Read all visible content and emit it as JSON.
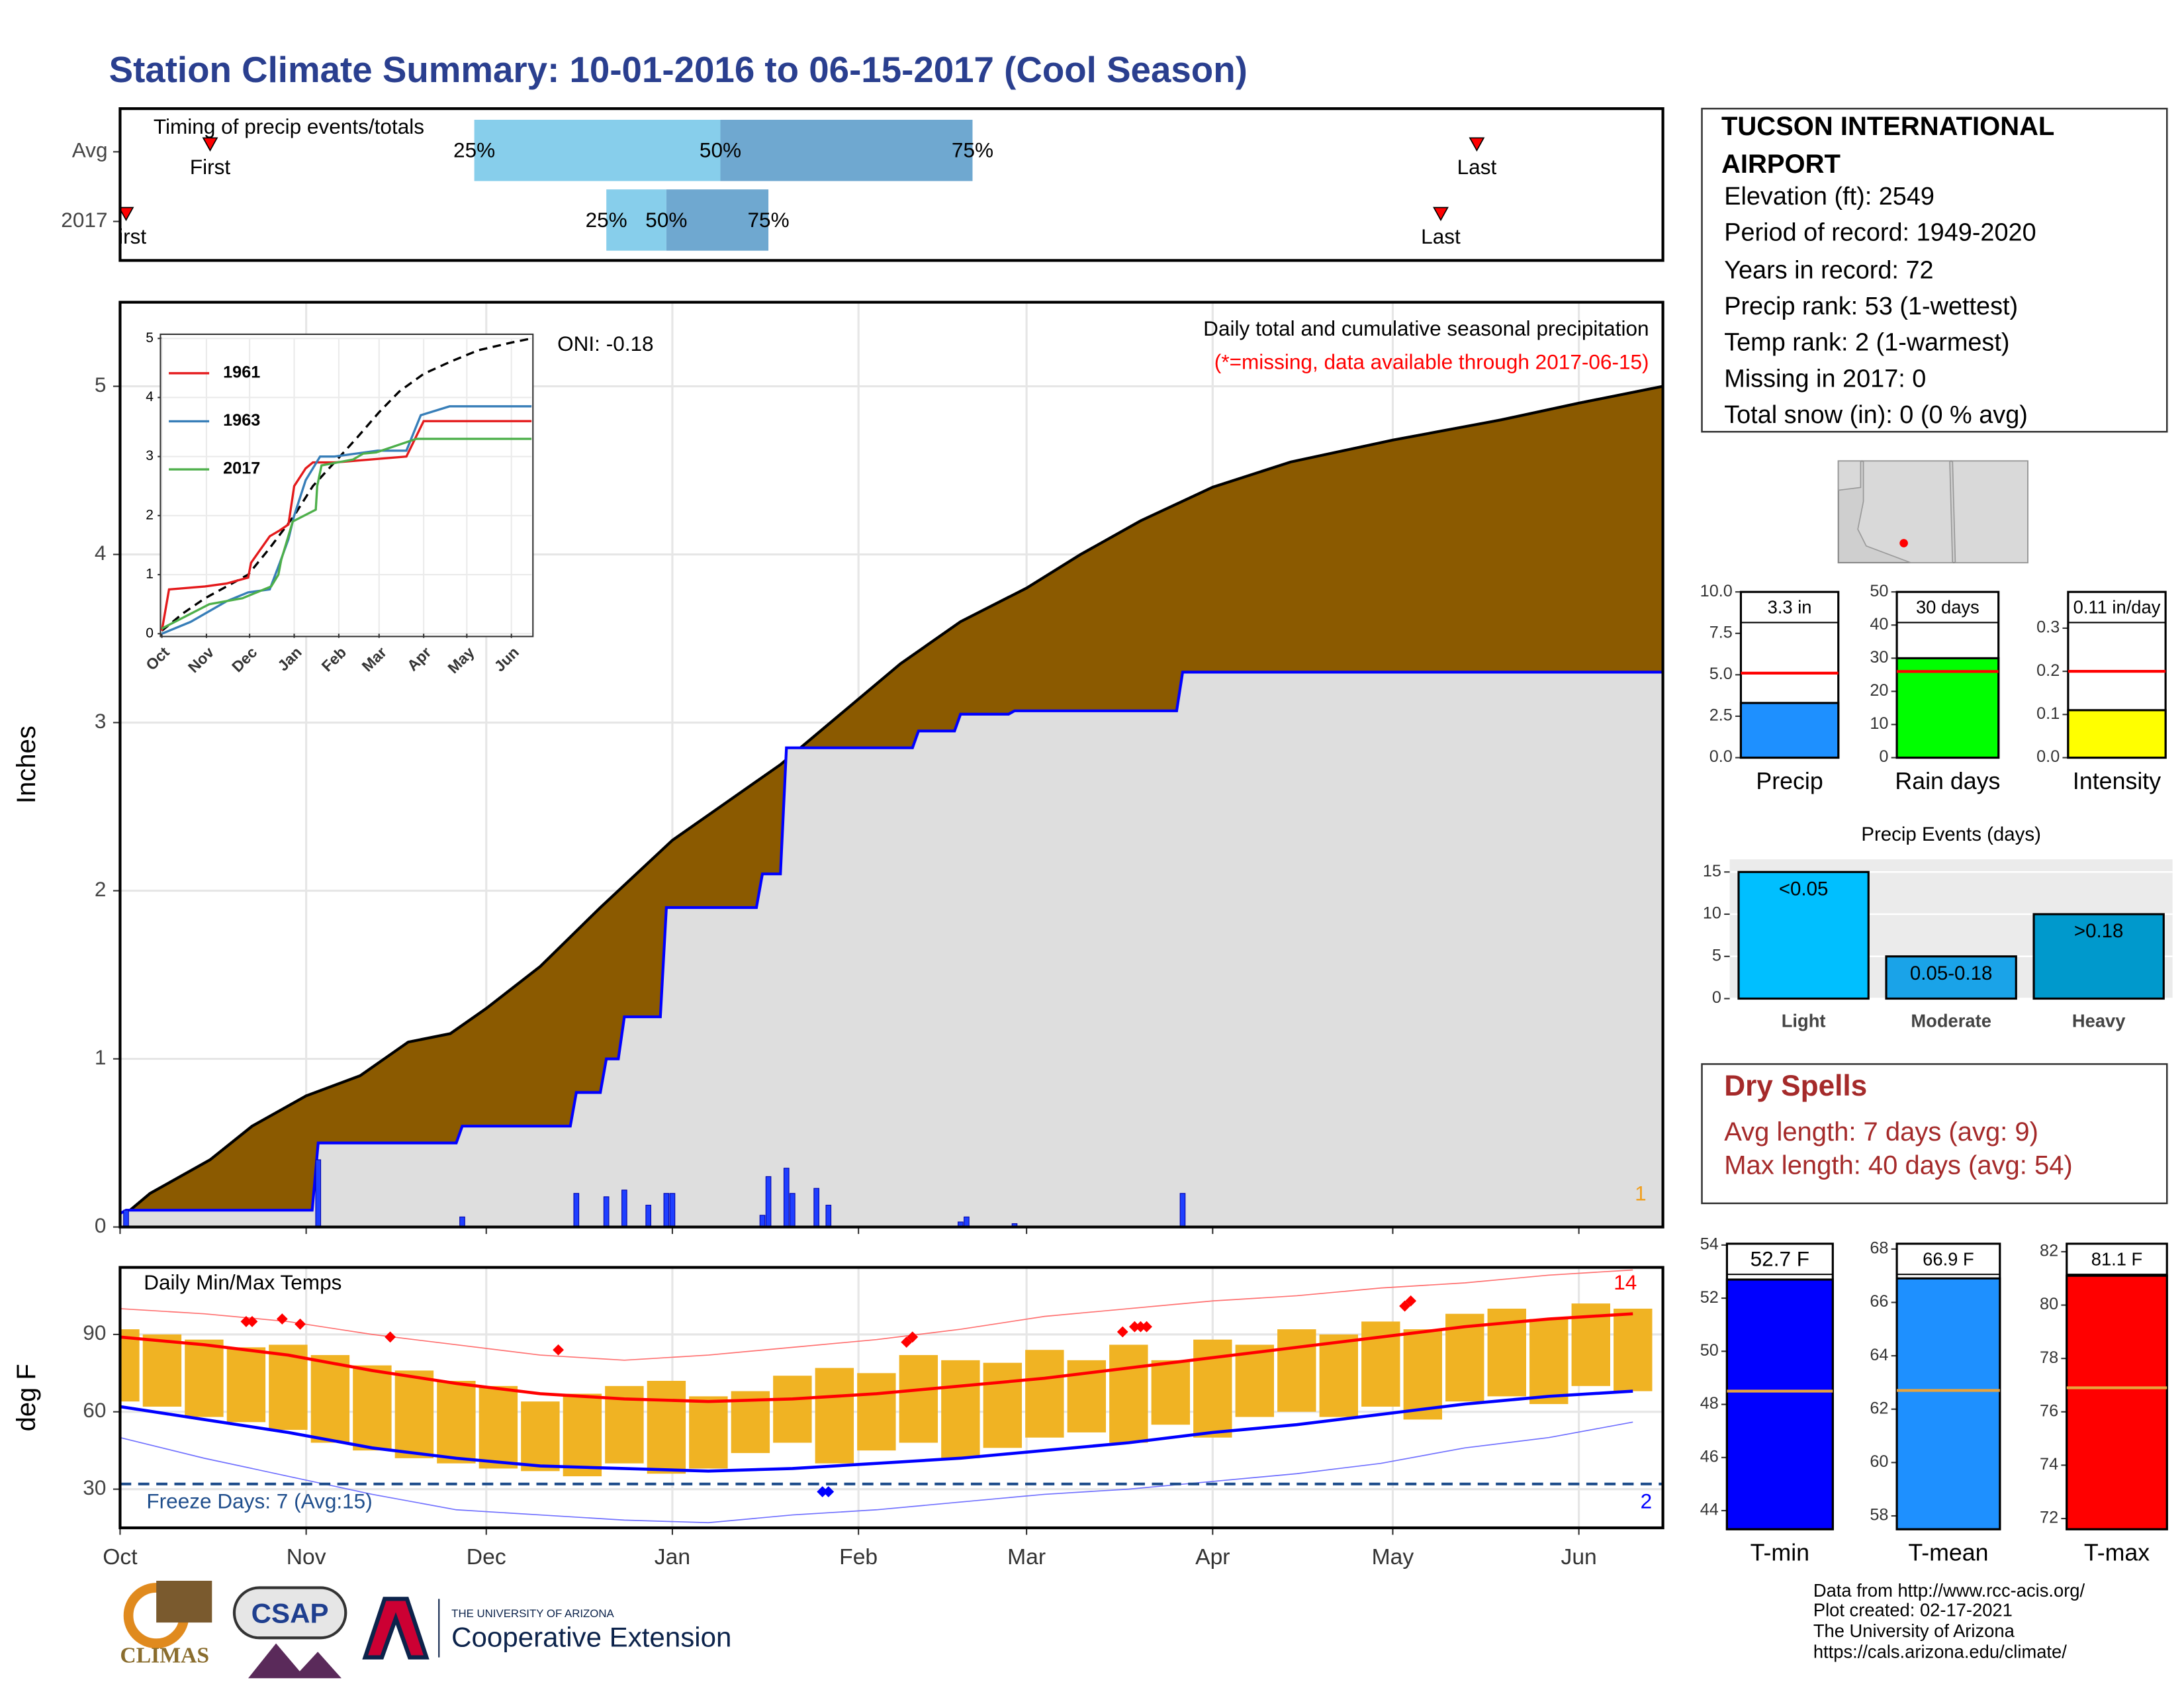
{
  "title": "Station Climate Summary: 10-01-2016 to 06-15-2017 (Cool Season)",
  "station": {
    "name": "TUCSON INTERNATIONAL AIRPORT",
    "details": [
      "Elevation (ft): 2549",
      "Period of record: 1949-2020",
      "Years in record: 72",
      "Precip rank: 53 (1-wettest)",
      "Temp rank: 2 (1-warmest)",
      "Missing in 2017: 0",
      "Total snow (in): 0 (0 % avg)"
    ]
  },
  "dry_spells": {
    "title": "Dry Spells",
    "lines": [
      "Avg length: 7 days (avg: 9)",
      "Max length: 40 days (avg: 54)"
    ]
  },
  "credits": [
    "Data from http://www.rcc-acis.org/",
    "Plot created: 02-17-2021",
    "The University of Arizona",
    "https://cals.arizona.edu/climate/"
  ],
  "logos": [
    "CLIMAS",
    "CSAP",
    "THE UNIVERSITY OF ARIZONA",
    "Cooperative Extension"
  ],
  "chart_data": [
    {
      "type": "timing",
      "title": "Timing of precip events/totals",
      "xlim": [
        0,
        257
      ],
      "series": [
        {
          "name": "Avg",
          "values": [
            15,
            59,
            100,
            142,
            226
          ]
        },
        {
          "name": "2017",
          "values": [
            1,
            81,
            91,
            108,
            220
          ]
        }
      ],
      "marker_labels": [
        "First",
        "25%",
        "50%",
        "75%",
        "Last"
      ],
      "colors": [
        "#87ceeb",
        "#6fa8d0"
      ],
      "marker_color": "#ff0000"
    },
    {
      "type": "cumulative_area",
      "title": "Daily total and cumulative seasonal precipitation",
      "subtitle": "(*=missing, data available through 2017-06-15)",
      "ylabel": "Inches",
      "annotations": [
        "ONI: -0.18",
        "1"
      ],
      "xlim": [
        0,
        257
      ],
      "ylim": [
        0,
        5.5
      ],
      "xticks": [
        0,
        31,
        61,
        92,
        123,
        151,
        182,
        212,
        243
      ],
      "yticks": [
        0,
        1,
        2,
        3,
        4,
        5
      ],
      "grid": true,
      "series": [
        {
          "x": [
            0,
            5,
            15,
            22,
            31,
            40,
            48,
            55,
            61,
            70,
            80,
            92,
            100,
            110,
            120,
            130,
            140,
            151,
            160,
            170,
            182,
            195,
            212,
            230,
            243,
            257
          ],
          "values": [
            0.05,
            0.2,
            0.4,
            0.6,
            0.78,
            0.9,
            1.1,
            1.15,
            1.3,
            1.55,
            1.9,
            2.3,
            2.5,
            2.75,
            3.05,
            3.35,
            3.6,
            3.8,
            4.0,
            4.2,
            4.4,
            4.55,
            4.68,
            4.8,
            4.9,
            5.0
          ],
          "color": "#000000",
          "fill": "#8b5a00"
        },
        {
          "x": [
            0,
            1,
            32,
            33,
            56,
            57,
            75,
            76,
            80,
            81,
            83,
            84,
            90,
            91,
            106,
            107,
            110,
            111,
            132,
            133,
            139,
            140,
            148,
            149,
            176,
            177,
            257
          ],
          "values": [
            0.08,
            0.1,
            0.1,
            0.5,
            0.5,
            0.6,
            0.6,
            0.8,
            0.8,
            1.0,
            1.0,
            1.25,
            1.25,
            1.9,
            1.9,
            2.1,
            2.1,
            2.85,
            2.85,
            2.95,
            2.95,
            3.05,
            3.05,
            3.07,
            3.07,
            3.3,
            3.3
          ],
          "color": "#0000ff",
          "fill": "#dedede"
        }
      ],
      "daily": {
        "x": [
          1,
          33,
          57,
          76,
          81,
          84,
          88,
          91,
          92,
          107,
          108,
          111,
          112,
          116,
          118,
          140,
          141,
          149,
          177
        ],
        "values": [
          0.1,
          0.4,
          0.06,
          0.2,
          0.18,
          0.22,
          0.13,
          0.2,
          0.2,
          0.07,
          0.3,
          0.35,
          0.2,
          0.23,
          0.13,
          0.03,
          0.06,
          0.02,
          0.2
        ],
        "color": "#1f3fff"
      }
    },
    {
      "type": "line",
      "xlim": [
        0,
        257
      ],
      "ylim": [
        0,
        5
      ],
      "yticks": [
        0,
        1,
        2,
        3,
        4,
        5
      ],
      "xticks": [
        {
          "value": 0,
          "label": "Oct"
        },
        {
          "value": 31,
          "label": "Nov"
        },
        {
          "value": 61,
          "label": "Dec"
        },
        {
          "value": 92,
          "label": "Jan"
        },
        {
          "value": 123,
          "label": "Feb"
        },
        {
          "value": 151,
          "label": "Mar"
        },
        {
          "value": 182,
          "label": "Apr"
        },
        {
          "value": 212,
          "label": "May"
        },
        {
          "value": 243,
          "label": "Jun"
        }
      ],
      "series": [
        {
          "x": [
            0,
            15,
            30,
            45,
            60,
            75,
            92,
            105,
            120,
            135,
            151,
            165,
            182,
            200,
            220,
            243,
            257
          ],
          "values": [
            0.05,
            0.35,
            0.6,
            0.8,
            1.0,
            1.45,
            2.0,
            2.5,
            2.9,
            3.3,
            3.75,
            4.1,
            4.4,
            4.6,
            4.8,
            4.93,
            5.0
          ],
          "color": "#000000",
          "dash": true
        },
        {
          "name": "1961",
          "x": [
            0,
            5,
            30,
            45,
            60,
            62,
            75,
            82,
            88,
            92,
            100,
            105,
            120,
            170,
            182,
            257
          ],
          "values": [
            0.05,
            0.75,
            0.8,
            0.85,
            0.95,
            1.2,
            1.65,
            1.75,
            1.85,
            2.5,
            2.8,
            2.9,
            2.9,
            3.0,
            3.6,
            3.6
          ],
          "color": "#e41a1c"
        },
        {
          "name": "1963",
          "x": [
            0,
            20,
            45,
            60,
            75,
            82,
            88,
            92,
            100,
            110,
            120,
            150,
            170,
            180,
            200,
            257
          ],
          "values": [
            0,
            0.2,
            0.55,
            0.7,
            0.75,
            1.2,
            1.6,
            2.0,
            2.6,
            3.0,
            3.0,
            3.1,
            3.1,
            3.7,
            3.85,
            3.85
          ],
          "color": "#377eb8"
        },
        {
          "name": "2017",
          "x": [
            0,
            1,
            33,
            56,
            76,
            81,
            83,
            91,
            107,
            108,
            111,
            133,
            140,
            149,
            177,
            257
          ],
          "values": [
            0.08,
            0.1,
            0.5,
            0.6,
            0.8,
            1.0,
            1.25,
            1.9,
            2.1,
            2.5,
            2.85,
            2.95,
            3.05,
            3.07,
            3.3,
            3.3
          ],
          "color": "#4daf4a"
        }
      ]
    },
    {
      "type": "temperature_range",
      "title": "Daily Min/Max Temps",
      "ylabel": "deg F",
      "xlim": [
        0,
        257
      ],
      "ylim": [
        15,
        116
      ],
      "xticks": [
        {
          "value": 0,
          "label": "Oct"
        },
        {
          "value": 31,
          "label": "Nov"
        },
        {
          "value": 61,
          "label": "Dec"
        },
        {
          "value": 92,
          "label": "Jan"
        },
        {
          "value": 123,
          "label": "Feb"
        },
        {
          "value": 151,
          "label": "Mar"
        },
        {
          "value": 182,
          "label": "Apr"
        },
        {
          "value": 212,
          "label": "May"
        },
        {
          "value": 243,
          "label": "Jun"
        }
      ],
      "yticks": [
        30,
        60,
        90
      ],
      "ranges": {
        "x": [
          0,
          7,
          14,
          21,
          28,
          35,
          42,
          49,
          56,
          63,
          70,
          77,
          84,
          91,
          98,
          105,
          112,
          119,
          126,
          133,
          140,
          147,
          154,
          161,
          168,
          175,
          182,
          189,
          196,
          203,
          210,
          217,
          224,
          231,
          238,
          245,
          252
        ],
        "low": [
          64,
          62,
          58,
          56,
          53,
          48,
          45,
          42,
          40,
          38,
          37,
          35,
          40,
          36,
          38,
          44,
          48,
          40,
          45,
          48,
          42,
          46,
          50,
          52,
          48,
          55,
          50,
          58,
          60,
          58,
          62,
          57,
          64,
          66,
          63,
          70,
          68
        ],
        "high": [
          92,
          90,
          88,
          85,
          86,
          82,
          78,
          76,
          72,
          70,
          64,
          67,
          70,
          72,
          66,
          68,
          74,
          77,
          75,
          82,
          80,
          79,
          84,
          80,
          86,
          80,
          88,
          86,
          92,
          90,
          95,
          92,
          98,
          100,
          96,
          102,
          100
        ],
        "color": "#f0b323"
      },
      "x": [
        0,
        14,
        28,
        42,
        56,
        70,
        84,
        98,
        112,
        126,
        140,
        154,
        168,
        182,
        196,
        210,
        224,
        238,
        252
      ],
      "series": [
        {
          "values": [
            100,
            98,
            95,
            90,
            86,
            82,
            80,
            82,
            85,
            88,
            92,
            97,
            100,
            103,
            105,
            108,
            110,
            113,
            115
          ],
          "color": "#ff7070",
          "width": 0.8
        },
        {
          "values": [
            50,
            42,
            35,
            28,
            22,
            20,
            18,
            17,
            20,
            22,
            25,
            28,
            30,
            33,
            36,
            40,
            46,
            50,
            56
          ],
          "color": "#7070ff",
          "width": 0.8
        },
        {
          "values": [
            89,
            86,
            82,
            76,
            71,
            67,
            65,
            64,
            65,
            67,
            70,
            73,
            77,
            81,
            85,
            89,
            93,
            96,
            98
          ],
          "color": "#ff0000",
          "width": 2.2
        },
        {
          "values": [
            62,
            57,
            52,
            46,
            42,
            39,
            38,
            37,
            38,
            40,
            42,
            45,
            48,
            52,
            55,
            59,
            63,
            66,
            68
          ],
          "color": "#0000ff",
          "width": 2.2
        }
      ],
      "record_days": {
        "x": [
          21,
          22,
          27,
          30,
          45,
          73,
          131,
          132,
          167,
          169,
          170,
          171,
          214,
          215
        ],
        "values": [
          95,
          95,
          96,
          94,
          89,
          84,
          87,
          89,
          91,
          93,
          93,
          93,
          101,
          103
        ],
        "color": "#ff0000"
      },
      "freeze_days": {
        "x": [
          117,
          118
        ],
        "values": [
          29,
          29
        ],
        "color": "#0000ff"
      },
      "freeze_threshold": 32,
      "freeze_color": "#1f4e8c",
      "annotations": [
        "Freeze Days: 7 (Avg:15)",
        "14",
        "2"
      ]
    },
    {
      "type": "bar",
      "categories": [
        "Precip"
      ],
      "values": [
        3.3
      ],
      "value_labels": [
        "3.3 in"
      ],
      "average": 5.1,
      "average_color": "#ff0000",
      "color": "#1e90ff",
      "ylim": [
        0,
        10
      ],
      "yticks": [
        {
          "value": 0,
          "label": "0.0"
        },
        {
          "value": 2.5,
          "label": "2.5"
        },
        {
          "value": 5,
          "label": "5.0"
        },
        {
          "value": 7.5,
          "label": "7.5"
        },
        {
          "value": 10,
          "label": "10.0"
        }
      ]
    },
    {
      "type": "bar",
      "categories": [
        "Rain days"
      ],
      "values": [
        30
      ],
      "value_labels": [
        "30 days"
      ],
      "average": 26,
      "average_color": "#ff0000",
      "color": "#00ff00",
      "ylim": [
        0,
        50
      ],
      "yticks": [
        0,
        10,
        20,
        30,
        40,
        50
      ]
    },
    {
      "type": "bar",
      "categories": [
        "Intensity"
      ],
      "values": [
        0.11
      ],
      "value_labels": [
        "0.11 in/day"
      ],
      "average": 0.2,
      "average_color": "#ff0000",
      "color": "#ffff00",
      "ylim": [
        0,
        0.384
      ],
      "yticks": [
        {
          "value": 0,
          "label": "0.0"
        },
        0.1,
        0.2,
        0.3
      ]
    },
    {
      "type": "bar",
      "title": "Precip Events (days)",
      "categories": [
        "Light",
        "Moderate",
        "Heavy"
      ],
      "values": [
        15,
        5,
        10
      ],
      "bar_labels": [
        "<0.05",
        "0.05-0.18",
        ">0.18"
      ],
      "colors": [
        "#00bfff",
        "#1aa3e8",
        "#0099cc"
      ],
      "ylim": [
        0,
        16.5
      ],
      "yticks": [
        0,
        5,
        10,
        15
      ],
      "grid": true
    },
    {
      "type": "bar",
      "categories": [
        "T-min"
      ],
      "values": [
        52.7
      ],
      "value_labels": [
        "52.7 F"
      ],
      "average": 48.5,
      "average_color": "#e8a33d",
      "color": "#0000ff",
      "ylim": [
        43.3,
        54.05
      ],
      "yticks": [
        44,
        46,
        48,
        50,
        52,
        54
      ]
    },
    {
      "type": "bar",
      "categories": [
        "T-mean"
      ],
      "values": [
        66.9
      ],
      "value_labels": [
        "66.9 F"
      ],
      "average": 62.7,
      "average_color": "#e8a33d",
      "color": "#1e90ff",
      "ylim": [
        57.5,
        68.2
      ],
      "yticks": [
        58,
        60,
        62,
        64,
        66,
        68
      ]
    },
    {
      "type": "bar",
      "categories": [
        "T-max"
      ],
      "values": [
        81.1
      ],
      "value_labels": [
        "81.1 F"
      ],
      "average": 76.9,
      "average_color": "#e8a33d",
      "color": "#ff0000",
      "ylim": [
        71.6,
        82.3
      ],
      "yticks": [
        72,
        74,
        76,
        78,
        80,
        82
      ]
    }
  ]
}
